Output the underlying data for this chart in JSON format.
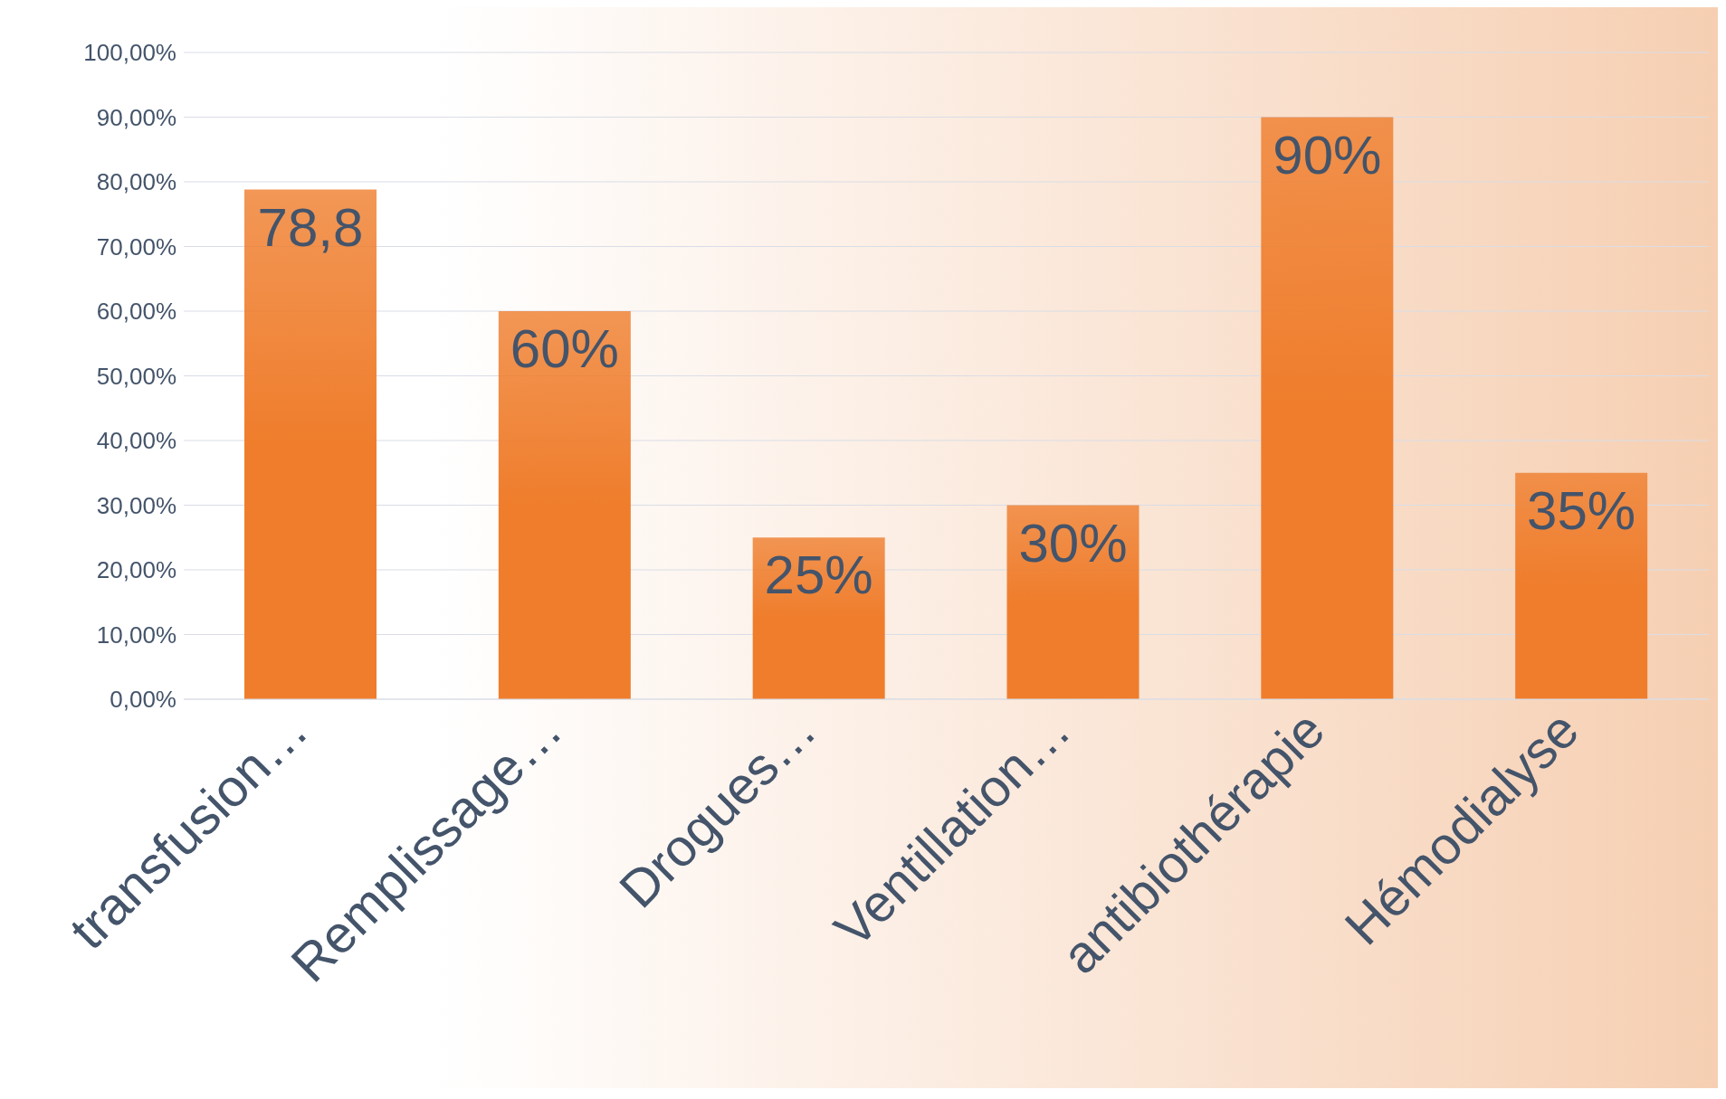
{
  "chart_data": {
    "type": "bar",
    "categories": [
      "transfusion…",
      "Remplissage…",
      "Drogues…",
      "Ventillation…",
      "antibiothérapie",
      "Hémodialyse"
    ],
    "values": [
      78.8,
      60,
      25,
      30,
      90,
      35
    ],
    "value_labels": [
      "78,8",
      "60%",
      "25%",
      "30%",
      "90%",
      "35%"
    ],
    "color": "#ef7d2c",
    "ylim": [
      0,
      100
    ],
    "yticks": [
      {
        "value": 0,
        "label": "0,00%"
      },
      {
        "value": 10,
        "label": "10,00%"
      },
      {
        "value": 20,
        "label": "20,00%"
      },
      {
        "value": 30,
        "label": "30,00%"
      },
      {
        "value": 40,
        "label": "40,00%"
      },
      {
        "value": 50,
        "label": "50,00%"
      },
      {
        "value": 60,
        "label": "60,00%"
      },
      {
        "value": 70,
        "label": "70,00%"
      },
      {
        "value": 80,
        "label": "80,00%"
      },
      {
        "value": 90,
        "label": "90,00%"
      },
      {
        "value": 100,
        "label": "100,00%"
      }
    ],
    "grid": "y",
    "legend": false
  }
}
